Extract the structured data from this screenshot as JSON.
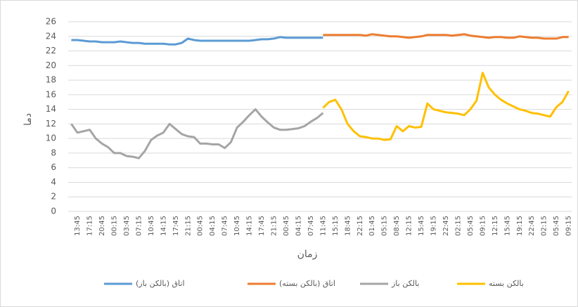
{
  "chart_data": {
    "type": "line",
    "y_label": "دما",
    "x_label": "زمان",
    "categories": [
      null,
      "13:45",
      null,
      "17:15",
      null,
      "20:45",
      null,
      "00:15",
      null,
      "03:45",
      null,
      "07:15",
      null,
      "10:45",
      null,
      "14:15",
      null,
      "17:45",
      null,
      "21:15",
      null,
      "00:45",
      null,
      "04:15",
      null,
      "07:45",
      null,
      "10:45",
      null,
      "14:15",
      null,
      "17:45",
      null,
      "21:15",
      null,
      "00:45",
      null,
      "04:15",
      null,
      "07:45",
      null,
      "11:45",
      null,
      "15:15",
      null,
      "18:45",
      null,
      "22:15",
      null,
      "01:45",
      null,
      "05:15",
      null,
      "08:45",
      null,
      "12:15",
      null,
      "15:45",
      null,
      "19:15",
      null,
      "22:45",
      null,
      "02:15",
      null,
      "05:45",
      null,
      "09:15",
      null,
      "12:15",
      null,
      "15:45",
      null,
      "19:15",
      null,
      "22:45",
      null,
      "02:15",
      null,
      "05:45",
      null,
      "09:15"
    ],
    "series": [
      {
        "name": "اتاق (بالکن باز)",
        "color": "#5b9bd5",
        "values": [
          23.5,
          23.5,
          23.4,
          23.3,
          23.3,
          23.2,
          23.2,
          23.2,
          23.3,
          23.2,
          23.1,
          23.1,
          23.0,
          23.0,
          23.0,
          23.0,
          22.9,
          22.9,
          23.1,
          23.7,
          23.5,
          23.4,
          23.4,
          23.4,
          23.4,
          23.4,
          23.4,
          23.4,
          23.4,
          23.4,
          23.5,
          23.6,
          23.6,
          23.7,
          23.9,
          23.8,
          23.8,
          23.8,
          23.8,
          23.8,
          23.8,
          23.8,
          null,
          null,
          null,
          null,
          null,
          null,
          null,
          null,
          null,
          null,
          null,
          null,
          null,
          null,
          null,
          null,
          null,
          null,
          null,
          null,
          null,
          null,
          null,
          null,
          null,
          null,
          null,
          null,
          null,
          null,
          null,
          null,
          null,
          null,
          null,
          null,
          null,
          null,
          null,
          null
        ]
      },
      {
        "name": "اتاق (بالکن بسته)",
        "color": "#ed7d31",
        "values": [
          null,
          null,
          null,
          null,
          null,
          null,
          null,
          null,
          null,
          null,
          null,
          null,
          null,
          null,
          null,
          null,
          null,
          null,
          null,
          null,
          null,
          null,
          null,
          null,
          null,
          null,
          null,
          null,
          null,
          null,
          null,
          null,
          null,
          null,
          null,
          null,
          null,
          null,
          null,
          null,
          null,
          24.2,
          24.2,
          24.2,
          24.2,
          24.2,
          24.2,
          24.2,
          24.1,
          24.3,
          24.2,
          24.1,
          24.0,
          24.0,
          23.9,
          23.8,
          23.9,
          24.0,
          24.2,
          24.2,
          24.2,
          24.2,
          24.1,
          24.2,
          24.3,
          24.1,
          24.0,
          23.9,
          23.8,
          23.9,
          23.9,
          23.8,
          23.8,
          24.0,
          23.9,
          23.8,
          23.8,
          23.7,
          23.7,
          23.7,
          23.9,
          23.9
        ]
      },
      {
        "name": "بالکن باز",
        "color": "#a5a5a5",
        "values": [
          12.0,
          10.8,
          11.0,
          11.2,
          10.0,
          9.3,
          8.8,
          8.0,
          8.0,
          7.6,
          7.5,
          7.3,
          8.3,
          9.8,
          10.4,
          10.8,
          12.0,
          11.3,
          10.6,
          10.3,
          10.2,
          9.3,
          9.3,
          9.2,
          9.2,
          8.7,
          9.5,
          11.5,
          12.3,
          13.2,
          14.0,
          13.0,
          12.2,
          11.5,
          11.2,
          11.2,
          11.3,
          11.4,
          11.7,
          12.3,
          12.8,
          13.5,
          null,
          null,
          null,
          null,
          null,
          null,
          null,
          null,
          null,
          null,
          null,
          null,
          null,
          null,
          null,
          null,
          null,
          null,
          null,
          null,
          null,
          null,
          null,
          null,
          null,
          null,
          null,
          null,
          null,
          null,
          null,
          null,
          null,
          null,
          null,
          null,
          null,
          null,
          null,
          null
        ]
      },
      {
        "name": "بالکن بسته",
        "color": "#ffc000",
        "values": [
          null,
          null,
          null,
          null,
          null,
          null,
          null,
          null,
          null,
          null,
          null,
          null,
          null,
          null,
          null,
          null,
          null,
          null,
          null,
          null,
          null,
          null,
          null,
          null,
          null,
          null,
          null,
          null,
          null,
          null,
          null,
          null,
          null,
          null,
          null,
          null,
          null,
          null,
          null,
          null,
          null,
          14.2,
          15.0,
          15.3,
          14.0,
          12.0,
          11.0,
          10.3,
          10.2,
          10.0,
          10.0,
          9.8,
          9.9,
          11.7,
          11.0,
          11.7,
          11.5,
          11.6,
          14.8,
          14.0,
          13.8,
          13.6,
          13.5,
          13.4,
          13.2,
          14.0,
          15.2,
          19.0,
          17.0,
          16.0,
          15.3,
          14.8,
          14.4,
          14.0,
          13.8,
          13.5,
          13.4,
          13.2,
          13.0,
          14.3,
          15.0,
          16.5
        ]
      }
    ],
    "ylim": [
      0,
      26
    ],
    "yticks": [
      0,
      2,
      4,
      6,
      8,
      10,
      12,
      14,
      16,
      18,
      20,
      22,
      24,
      26
    ],
    "grid": true
  }
}
